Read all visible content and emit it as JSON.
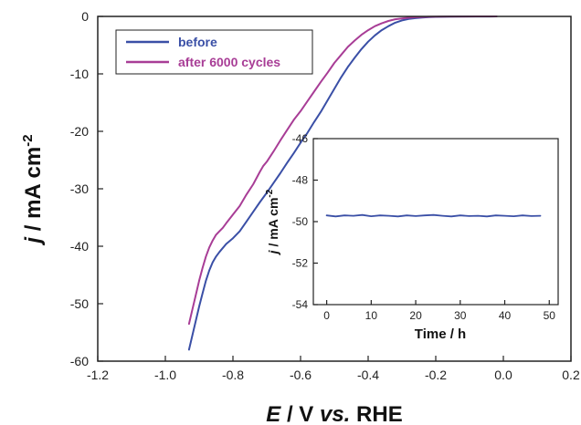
{
  "chart_data": [
    {
      "type": "line",
      "xlabel": {
        "italic": "E",
        "rest": " / V ",
        "italic2": "vs.",
        "rest2": " RHE"
      },
      "ylabel": {
        "italic": "j",
        "rest": " / mA cm",
        "sup": "-2"
      },
      "xlim": [
        -1.2,
        0.2
      ],
      "ylim": [
        -60,
        0
      ],
      "xticks": [
        "-1.2",
        "-1.0",
        "-0.8",
        "-0.6",
        "-0.4",
        "-0.2",
        "0.0",
        "0.2"
      ],
      "yticks": [
        "0",
        "-10",
        "-20",
        "-30",
        "-40",
        "-50",
        "-60"
      ],
      "legend_position": "top-left",
      "series": [
        {
          "name": "before",
          "color": "#3a4fa6",
          "x": [
            -0.93,
            -0.92,
            -0.91,
            -0.9,
            -0.89,
            -0.88,
            -0.87,
            -0.86,
            -0.85,
            -0.84,
            -0.82,
            -0.8,
            -0.78,
            -0.76,
            -0.74,
            -0.72,
            -0.7,
            -0.68,
            -0.66,
            -0.64,
            -0.62,
            -0.6,
            -0.58,
            -0.56,
            -0.54,
            -0.52,
            -0.5,
            -0.48,
            -0.46,
            -0.44,
            -0.42,
            -0.4,
            -0.38,
            -0.36,
            -0.34,
            -0.32,
            -0.3,
            -0.28,
            -0.26,
            -0.24,
            -0.22,
            -0.2,
            -0.16,
            -0.12,
            -0.08,
            -0.04,
            -0.02
          ],
          "y": [
            -58.0,
            -55.5,
            -53.0,
            -50.5,
            -48.2,
            -46.0,
            -44.2,
            -42.8,
            -41.8,
            -41.0,
            -39.6,
            -38.6,
            -37.4,
            -35.7,
            -34.0,
            -32.3,
            -30.7,
            -29.0,
            -27.3,
            -25.5,
            -23.8,
            -22.0,
            -20.3,
            -18.4,
            -16.6,
            -14.6,
            -12.6,
            -10.6,
            -8.8,
            -7.2,
            -5.7,
            -4.4,
            -3.3,
            -2.4,
            -1.7,
            -1.1,
            -0.7,
            -0.45,
            -0.3,
            -0.2,
            -0.12,
            -0.08,
            -0.04,
            -0.02,
            -0.01,
            -0.01,
            0.0
          ]
        },
        {
          "name": "after 6000 cycles",
          "color": "#a83d96",
          "x": [
            -0.93,
            -0.92,
            -0.91,
            -0.9,
            -0.89,
            -0.88,
            -0.87,
            -0.86,
            -0.85,
            -0.84,
            -0.83,
            -0.82,
            -0.8,
            -0.78,
            -0.76,
            -0.74,
            -0.72,
            -0.71,
            -0.7,
            -0.68,
            -0.66,
            -0.64,
            -0.62,
            -0.6,
            -0.58,
            -0.56,
            -0.54,
            -0.52,
            -0.5,
            -0.48,
            -0.46,
            -0.44,
            -0.42,
            -0.4,
            -0.38,
            -0.36,
            -0.34,
            -0.32,
            -0.3,
            -0.28,
            -0.26,
            -0.24,
            -0.22,
            -0.2,
            -0.16,
            -0.12,
            -0.08,
            -0.04,
            -0.02
          ],
          "y": [
            -53.5,
            -51.0,
            -48.5,
            -46.0,
            -43.8,
            -41.8,
            -40.2,
            -39.0,
            -38.0,
            -37.4,
            -36.8,
            -36.0,
            -34.5,
            -33.0,
            -31.0,
            -29.2,
            -27.0,
            -26.0,
            -25.3,
            -23.5,
            -21.6,
            -19.8,
            -18.0,
            -16.5,
            -14.8,
            -13.1,
            -11.4,
            -9.8,
            -8.1,
            -6.7,
            -5.3,
            -4.2,
            -3.2,
            -2.4,
            -1.7,
            -1.2,
            -0.8,
            -0.5,
            -0.35,
            -0.22,
            -0.15,
            -0.1,
            -0.06,
            -0.04,
            -0.02,
            -0.01,
            0.0,
            0.0,
            0.0
          ]
        }
      ]
    },
    {
      "type": "line",
      "xlabel": "Time / h",
      "ylabel": {
        "italic": "j",
        "rest": " / mA cm",
        "sup": "-2"
      },
      "xlim": [
        -3,
        52
      ],
      "ylim": [
        -54,
        -46
      ],
      "xticks": [
        "0",
        "10",
        "20",
        "30",
        "40",
        "50"
      ],
      "yticks": [
        "-46",
        "-48",
        "-50",
        "-52",
        "-54"
      ],
      "series": [
        {
          "color": "#3a4fa6",
          "x": [
            0,
            2,
            4,
            6,
            8,
            10,
            12,
            14,
            16,
            18,
            20,
            22,
            24,
            26,
            28,
            30,
            32,
            34,
            36,
            38,
            40,
            42,
            44,
            46,
            48
          ],
          "y": [
            -49.7,
            -49.75,
            -49.7,
            -49.72,
            -49.68,
            -49.74,
            -49.7,
            -49.72,
            -49.75,
            -49.7,
            -49.73,
            -49.7,
            -49.68,
            -49.72,
            -49.75,
            -49.7,
            -49.73,
            -49.72,
            -49.75,
            -49.7,
            -49.72,
            -49.74,
            -49.7,
            -49.73,
            -49.72
          ]
        }
      ]
    }
  ]
}
